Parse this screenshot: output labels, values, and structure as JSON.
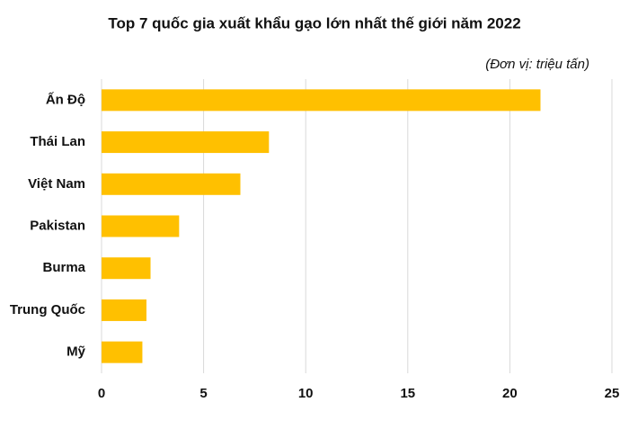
{
  "chart_data": {
    "type": "bar",
    "orientation": "horizontal",
    "title": "Top 7 quốc gia xuất khẩu gạo lớn nhất thế giới năm 2022",
    "subtitle": "(Đơn vị: triệu tấn)",
    "categories": [
      "Ấn Độ",
      "Thái Lan",
      "Việt Nam",
      "Pakistan",
      "Burma",
      "Trung Quốc",
      "Mỹ"
    ],
    "values": [
      21.5,
      8.2,
      6.8,
      3.8,
      2.4,
      2.2,
      2.0
    ],
    "color": "#ffc000",
    "xlim": [
      0,
      25
    ],
    "xticks": [
      0,
      5,
      10,
      15,
      20,
      25
    ],
    "grid": true
  }
}
